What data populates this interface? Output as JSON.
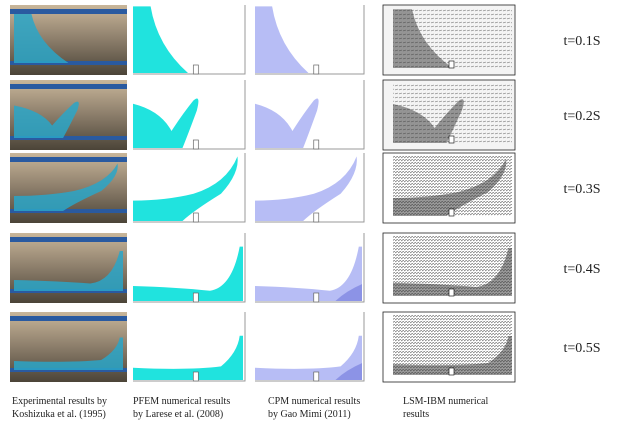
{
  "times": [
    "t=0.1S",
    "t=0.2S",
    "t=0.3S",
    "t=0.4S",
    "t=0.5S"
  ],
  "captions": [
    {
      "lines": [
        "Experimental results by",
        "Koshizuka et al. (1995)"
      ]
    },
    {
      "lines": [
        "PFEM numerical results",
        "by Larese et al. (2008)"
      ]
    },
    {
      "lines": [
        "CPM numerical results",
        "by Gao Mimi (2011)"
      ]
    },
    {
      "lines": [
        "LSM-IBM numerical",
        "results"
      ]
    }
  ]
}
